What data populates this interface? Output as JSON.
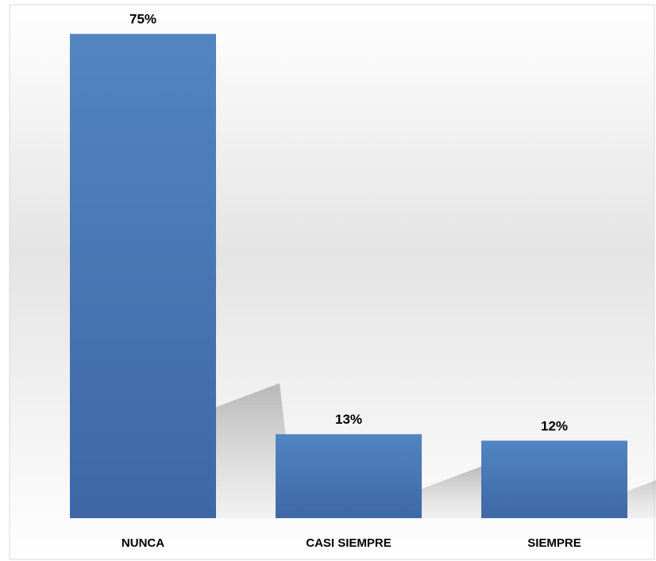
{
  "chart_data": {
    "type": "bar",
    "categories": [
      "NUNCA",
      "CASI SIEMPRE",
      "SIEMPRE"
    ],
    "values": [
      75,
      13,
      12
    ],
    "data_labels": [
      "75%",
      "13%",
      "12%"
    ],
    "ylim": [
      0,
      80
    ],
    "grid": false,
    "legend": "none",
    "bar_color": "#4f81bd"
  }
}
